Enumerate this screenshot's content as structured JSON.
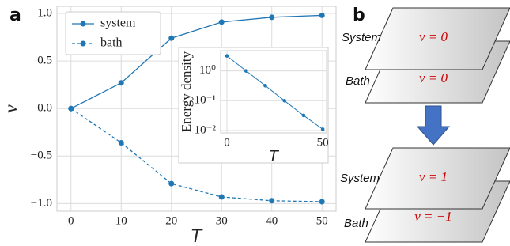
{
  "panel_labels": [
    "a",
    "b"
  ],
  "chart_data": [
    {
      "type": "line",
      "xlabel": "T",
      "ylabel": "ν",
      "x": [
        0,
        10,
        20,
        30,
        40,
        50
      ],
      "series": [
        {
          "name": "system",
          "color": "#1f77b4",
          "linestyle": "solid",
          "values": [
            0,
            0.27,
            0.74,
            0.91,
            0.96,
            0.98
          ]
        },
        {
          "name": "bath",
          "color": "#1f77b4",
          "linestyle": "dashed",
          "values": [
            0,
            -0.36,
            -0.79,
            -0.93,
            -0.97,
            -0.98
          ]
        }
      ],
      "xlim": [
        -2.8,
        52.8
      ],
      "ylim": [
        -1.08,
        1.075
      ],
      "xticks": [
        0,
        10,
        20,
        30,
        40,
        50
      ],
      "yticks": [
        {
          "value": 1,
          "label": "1.0"
        },
        0.5,
        {
          "value": 0,
          "label": "0.0"
        },
        {
          "value": -0.5,
          "label": "−0.5"
        },
        {
          "value": -1,
          "label": "−1.0"
        }
      ],
      "grid": true,
      "legend": "upper left"
    },
    {
      "type": "line",
      "xlabel": "T",
      "ylabel": "Energy density",
      "x": [
        0,
        10,
        20,
        30,
        40,
        50
      ],
      "values": [
        3.2,
        1.0,
        0.32,
        0.1,
        0.032,
        0.011
      ],
      "color": "#1f77b4",
      "xlim": [
        -3.3,
        52
      ],
      "ylim": [
        0.0083,
        4.8
      ],
      "log_y": true,
      "xticks": [
        0,
        50
      ],
      "yticks": [
        {
          "value": 1,
          "label": "10⁰"
        },
        {
          "value": 0.1,
          "label": "10⁻¹"
        },
        {
          "value": 0.01,
          "label": "10⁻²"
        }
      ],
      "grid": true
    }
  ],
  "diagram": {
    "before": [
      {
        "label": "System",
        "text": "ν = 0"
      },
      {
        "label": "Bath",
        "text": "ν = 0"
      }
    ],
    "after": [
      {
        "label": "System",
        "text": "ν = 1"
      },
      {
        "label": "Bath",
        "text": "ν = −1"
      }
    ]
  }
}
